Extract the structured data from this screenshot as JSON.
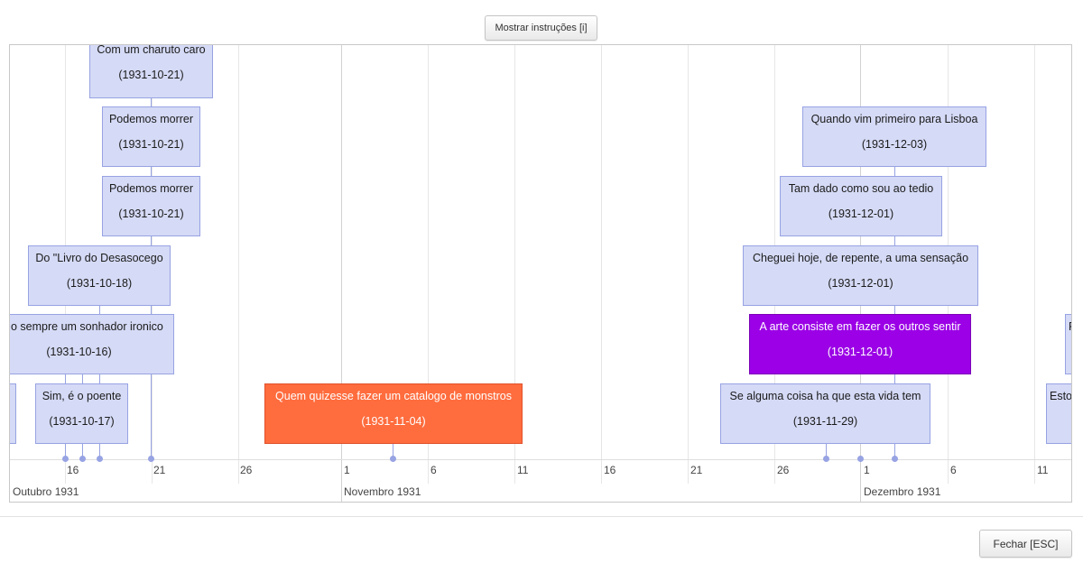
{
  "toolbar": {
    "instructions_label": "Mostrar instruções [i]"
  },
  "footer": {
    "close_label": "Fechar [ESC]"
  },
  "timeline": {
    "ticks": [
      "16",
      "21",
      "26",
      "1",
      "6",
      "11",
      "16",
      "21",
      "26",
      "1",
      "6",
      "11"
    ],
    "months": [
      "Outubro 1931",
      "Novembro 1931",
      "Dezembro 1931"
    ],
    "events": [
      {
        "title": "Com um charuto caro",
        "date": "(1931-10-21)"
      },
      {
        "title": "Podemos morrer",
        "date": "(1931-10-21)"
      },
      {
        "title": "Podemos morrer",
        "date": "(1931-10-21)"
      },
      {
        "title": "Do \"Livro do Desasocego",
        "date": "(1931-10-18)"
      },
      {
        "title": "o sempre um sonhador ironico",
        "date": "(1931-10-16)"
      },
      {
        "title": "Sim, é o poente",
        "date": "(1931-10-17)"
      },
      {
        "title": "Quem quizesse fazer um catalogo de monstros",
        "date": "(1931-11-04)"
      },
      {
        "title": "Quando vim primeiro para Lisboa",
        "date": "(1931-12-03)"
      },
      {
        "title": "Tam dado como sou ao tedio",
        "date": "(1931-12-01)"
      },
      {
        "title": "Cheguei hoje, de repente, a uma sensação",
        "date": "(1931-12-01)"
      },
      {
        "title": "A arte consiste em fazer os outros sentir",
        "date": "(1931-12-01)"
      },
      {
        "title": "Se alguma coisa ha que esta vida tem",
        "date": "(1931-11-29)"
      },
      {
        "title": "Esto",
        "date": ""
      },
      {
        "title": "F",
        "date": ""
      }
    ]
  },
  "colors": {
    "item_bg": "#d5daf6",
    "item_border": "#97a3e3",
    "selected_orange": "#ff6c3d",
    "selected_purple": "#9b00e6"
  }
}
